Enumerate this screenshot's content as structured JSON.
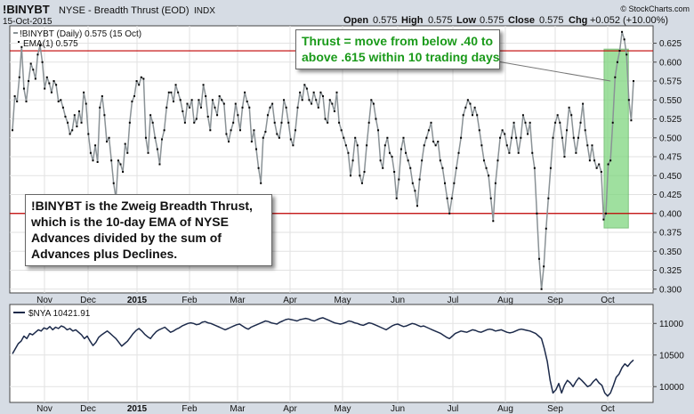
{
  "header": {
    "symbol": "!BINYBT",
    "description": "NYSE - Breadth Thrust (EOD)",
    "index_tag": "INDX",
    "date": "15-Oct-2015",
    "ohlc": {
      "open_label": "Open",
      "open": "0.575",
      "high_label": "High",
      "high": "0.575",
      "low_label": "Low",
      "low": "0.575",
      "close_label": "Close",
      "close": "0.575",
      "chg_label": "Chg",
      "chg": "+0.052 (+10.00%)"
    },
    "watermark": "© StockCharts.com"
  },
  "upper_panel": {
    "legend_line1": "!BINYBT (Daily) 0.575 (15 Oct)",
    "legend_line2": "EMA(1) 0.575"
  },
  "lower_panel": {
    "legend": "$NYA 10421.91"
  },
  "annotations": {
    "left_box": [
      "!BINYBT is the Zweig Breadth Thrust,",
      "which is the 10-day EMA of NYSE",
      "Advances divided by the sum of",
      "Advances plus Declines."
    ],
    "top_box": [
      "Thrust = move from below .40 to",
      "above .615 within 10 trading days"
    ]
  },
  "colors": {
    "breadth_line": "#8a9296",
    "breadth_points": "#000000",
    "threshold_lines": "#c00000",
    "thrust_highlight": "#7fd67f",
    "nya_line": "#1c2a4a",
    "callout_text_green": "#1a9a1a"
  },
  "chart_data": [
    {
      "type": "line",
      "series_name": "!BINYBT",
      "yticks": [
        "0.300",
        "0.325",
        "0.350",
        "0.375",
        "0.400",
        "0.425",
        "0.450",
        "0.475",
        "0.500",
        "0.525",
        "0.550",
        "0.575",
        "0.600",
        "0.625"
      ],
      "ylim": [
        0.295,
        0.648
      ],
      "xticks": [
        "Nov",
        "Dec",
        "2015",
        "Feb",
        "Mar",
        "Apr",
        "May",
        "Jun",
        "Jul",
        "Aug",
        "Sep",
        "Oct"
      ],
      "reference_lines": [
        0.4,
        0.615
      ],
      "highlight_range": [
        "2015-09-29",
        "2015-10-09"
      ],
      "grid": true,
      "values": [
        0.51,
        0.555,
        0.548,
        0.58,
        0.62,
        0.565,
        0.548,
        0.575,
        0.598,
        0.59,
        0.578,
        0.61,
        0.622,
        0.6,
        0.565,
        0.58,
        0.572,
        0.56,
        0.575,
        0.57,
        0.548,
        0.55,
        0.54,
        0.528,
        0.52,
        0.505,
        0.51,
        0.53,
        0.515,
        0.535,
        0.52,
        0.56,
        0.545,
        0.505,
        0.48,
        0.47,
        0.49,
        0.468,
        0.54,
        0.555,
        0.53,
        0.495,
        0.5,
        0.47,
        0.44,
        0.42,
        0.47,
        0.465,
        0.455,
        0.492,
        0.48,
        0.52,
        0.548,
        0.555,
        0.575,
        0.57,
        0.58,
        0.578,
        0.5,
        0.48,
        0.53,
        0.52,
        0.5,
        0.485,
        0.465,
        0.498,
        0.51,
        0.54,
        0.56,
        0.56,
        0.548,
        0.57,
        0.56,
        0.55,
        0.535,
        0.52,
        0.545,
        0.54,
        0.55,
        0.52,
        0.525,
        0.55,
        0.54,
        0.57,
        0.555,
        0.528,
        0.51,
        0.55,
        0.54,
        0.53,
        0.555,
        0.55,
        0.545,
        0.505,
        0.495,
        0.51,
        0.52,
        0.545,
        0.53,
        0.51,
        0.54,
        0.56,
        0.548,
        0.54,
        0.495,
        0.51,
        0.485,
        0.46,
        0.44,
        0.5,
        0.508,
        0.53,
        0.54,
        0.545,
        0.52,
        0.505,
        0.5,
        0.52,
        0.55,
        0.54,
        0.52,
        0.498,
        0.49,
        0.51,
        0.54,
        0.56,
        0.55,
        0.57,
        0.565,
        0.55,
        0.545,
        0.56,
        0.55,
        0.54,
        0.56,
        0.555,
        0.525,
        0.52,
        0.55,
        0.545,
        0.535,
        0.56,
        0.52,
        0.51,
        0.5,
        0.49,
        0.48,
        0.45,
        0.47,
        0.5,
        0.49,
        0.45,
        0.44,
        0.455,
        0.49,
        0.52,
        0.55,
        0.545,
        0.525,
        0.51,
        0.47,
        0.46,
        0.49,
        0.5,
        0.48,
        0.475,
        0.455,
        0.42,
        0.445,
        0.485,
        0.5,
        0.48,
        0.47,
        0.46,
        0.44,
        0.43,
        0.41,
        0.445,
        0.47,
        0.49,
        0.5,
        0.51,
        0.52,
        0.495,
        0.49,
        0.495,
        0.47,
        0.46,
        0.44,
        0.42,
        0.4,
        0.42,
        0.44,
        0.46,
        0.48,
        0.5,
        0.53,
        0.54,
        0.55,
        0.545,
        0.53,
        0.54,
        0.53,
        0.51,
        0.49,
        0.47,
        0.46,
        0.45,
        0.42,
        0.39,
        0.44,
        0.47,
        0.5,
        0.51,
        0.505,
        0.49,
        0.48,
        0.5,
        0.52,
        0.5,
        0.48,
        0.5,
        0.53,
        0.52,
        0.505,
        0.52,
        0.48,
        0.46,
        0.4,
        0.34,
        0.3,
        0.33,
        0.38,
        0.42,
        0.46,
        0.5,
        0.52,
        0.53,
        0.52,
        0.5,
        0.475,
        0.51,
        0.54,
        0.53,
        0.5,
        0.48,
        0.5,
        0.52,
        0.545,
        0.51,
        0.49,
        0.47,
        0.49,
        0.47,
        0.46,
        0.465,
        0.455,
        0.392,
        0.4,
        0.465,
        0.47,
        0.52,
        0.58,
        0.6,
        0.615,
        0.64,
        0.63,
        0.61,
        0.55,
        0.523,
        0.575
      ]
    },
    {
      "type": "line",
      "series_name": "$NYA",
      "yticks": [
        "10000",
        "10500",
        "11000"
      ],
      "ylim": [
        9750,
        11300
      ],
      "xticks": [
        "Nov",
        "Dec",
        "2015",
        "Feb",
        "Mar",
        "Apr",
        "May",
        "Jun",
        "Jul",
        "Aug",
        "Sep",
        "Oct"
      ],
      "grid": true,
      "values": [
        10520,
        10600,
        10680,
        10720,
        10800,
        10760,
        10840,
        10820,
        10860,
        10900,
        10880,
        10930,
        10910,
        10950,
        10900,
        10940,
        10920,
        10960,
        10940,
        10900,
        10920,
        10880,
        10900,
        10860,
        10820,
        10760,
        10800,
        10720,
        10650,
        10700,
        10780,
        10820,
        10850,
        10880,
        10840,
        10800,
        10760,
        10700,
        10640,
        10680,
        10720,
        10780,
        10840,
        10890,
        10920,
        10880,
        10830,
        10790,
        10760,
        10820,
        10870,
        10900,
        10920,
        10940,
        10900,
        10860,
        10880,
        10910,
        10930,
        10960,
        10980,
        11000,
        11010,
        11000,
        10980,
        10990,
        11020,
        11030,
        11010,
        11000,
        10980,
        10960,
        10940,
        10920,
        10900,
        10920,
        10940,
        10960,
        10980,
        10990,
        10960,
        10930,
        10910,
        10940,
        10960,
        10980,
        11000,
        11020,
        11040,
        11030,
        11010,
        11000,
        10990,
        11020,
        11040,
        11060,
        11070,
        11060,
        11050,
        11040,
        11060,
        11070,
        11080,
        11070,
        11050,
        11040,
        11060,
        11080,
        11090,
        11070,
        11050,
        11030,
        11010,
        11000,
        10990,
        11000,
        11020,
        11040,
        11030,
        11010,
        11000,
        10980,
        10970,
        10990,
        11010,
        11000,
        10980,
        10960,
        10940,
        10920,
        10900,
        10930,
        10960,
        10980,
        10990,
        10970,
        10950,
        10960,
        10980,
        11000,
        10990,
        10970,
        10950,
        10960,
        10940,
        10920,
        10900,
        10880,
        10860,
        10840,
        10810,
        10780,
        10760,
        10800,
        10840,
        10860,
        10880,
        10870,
        10860,
        10880,
        10900,
        10890,
        10870,
        10860,
        10880,
        10900,
        10910,
        10900,
        10880,
        10890,
        10900,
        10880,
        10860,
        10850,
        10860,
        10880,
        10900,
        10910,
        10900,
        10890,
        10880,
        10860,
        10840,
        10800,
        10760,
        10600,
        10400,
        10100,
        9900,
        9950,
        10050,
        9900,
        10020,
        10100,
        10060,
        10000,
        10080,
        10140,
        10100,
        10050,
        10000,
        10020,
        10080,
        10120,
        10060,
        10020,
        9900,
        9850,
        9900,
        10020,
        10150,
        10200,
        10300,
        10360,
        10320,
        10380,
        10421.91
      ]
    }
  ]
}
